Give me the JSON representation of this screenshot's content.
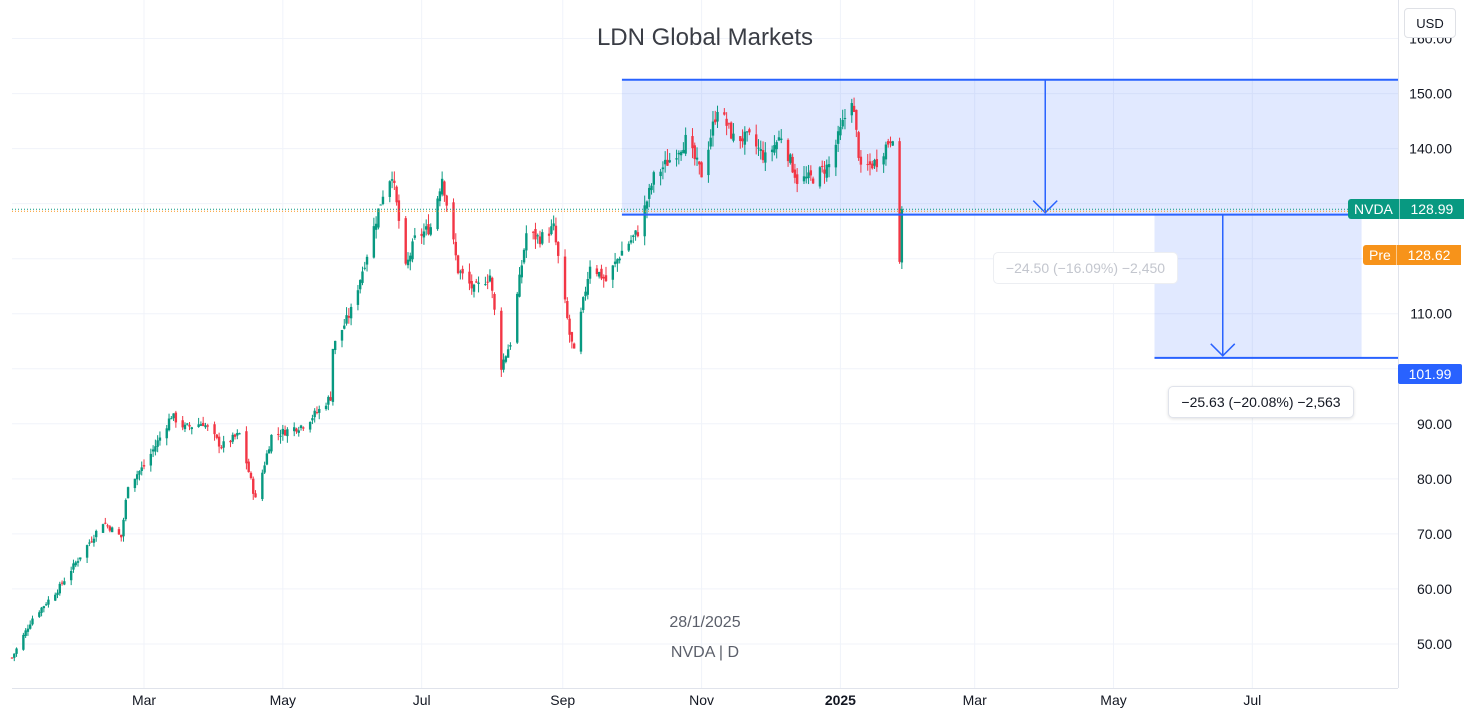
{
  "header": {
    "title": "LDN Global Markets",
    "currency_button": "USD"
  },
  "meta": {
    "date": "28/1/2025",
    "symbol_interval": "NVDA | D"
  },
  "price_tags": {
    "last": {
      "symbol": "NVDA",
      "value": "128.99",
      "color": "#089981"
    },
    "pre": {
      "label": "Pre",
      "value": "128.62",
      "color": "#f7931a"
    },
    "target": {
      "value": "101.99",
      "color": "#2962ff"
    }
  },
  "measurements": {
    "first": {
      "label": "−24.50 (−16.09%) −2,450",
      "top": 152.5,
      "bottom": 128.0,
      "from": "2024-09-27",
      "to": "2026-01-05"
    },
    "second": {
      "label": "−25.63 (−20.08%) −2,563",
      "top": 128.0,
      "bottom": 101.99,
      "from": "2025-05-19",
      "to": "2025-08-18"
    }
  },
  "colors": {
    "up": "#089981",
    "down": "#f23645",
    "zone": "#2962ff",
    "grid": "#f0f3fa"
  },
  "chart_data": {
    "type": "candlestick",
    "title": "LDN Global Markets",
    "symbol": "NVDA",
    "interval": "D",
    "y_axis": {
      "currency": "USD",
      "range": [
        42,
        167
      ],
      "ticks": [
        50,
        60,
        70,
        80,
        90,
        100,
        110,
        120,
        130,
        140,
        150,
        160
      ],
      "tick_labels": [
        "50.00",
        "60.00",
        "70.00",
        "80.00",
        "90.00",
        "100.00",
        "110.00",
        "120.00",
        "130.00",
        "140.00",
        "150.00",
        "160.00"
      ]
    },
    "x_axis": {
      "range": [
        "2024-01-03",
        "2025-09-03"
      ],
      "ticks": [
        {
          "date": "2024-03-01",
          "label": "Mar"
        },
        {
          "date": "2024-05-01",
          "label": "May"
        },
        {
          "date": "2024-07-01",
          "label": "Jul"
        },
        {
          "date": "2024-09-01",
          "label": "Sep"
        },
        {
          "date": "2024-11-01",
          "label": "Nov"
        },
        {
          "date": "2025-01-01",
          "label": "2025"
        },
        {
          "date": "2025-03-01",
          "label": "Mar"
        },
        {
          "date": "2025-05-01",
          "label": "May"
        },
        {
          "date": "2025-07-01",
          "label": "Jul"
        }
      ]
    },
    "last_price": 128.99,
    "pre_market_price": 128.62,
    "close_path": [
      [
        "2024-01-03",
        47.5
      ],
      [
        "2024-01-12",
        54.7
      ],
      [
        "2024-01-23",
        59.8
      ],
      [
        "2024-02-02",
        66.0
      ],
      [
        "2024-02-12",
        72.2
      ],
      [
        "2024-02-20",
        69.4
      ],
      [
        "2024-02-23",
        79.1
      ],
      [
        "2024-03-01",
        82.3
      ],
      [
        "2024-03-08",
        87.5
      ],
      [
        "2024-03-13",
        91.5
      ],
      [
        "2024-03-19",
        89.3
      ],
      [
        "2024-03-27",
        90.2
      ],
      [
        "2024-04-04",
        85.9
      ],
      [
        "2024-04-12",
        88.1
      ],
      [
        "2024-04-19",
        76.2
      ],
      [
        "2024-04-26",
        87.8
      ],
      [
        "2024-05-03",
        88.8
      ],
      [
        "2024-05-10",
        89.8
      ],
      [
        "2024-05-17",
        92.5
      ],
      [
        "2024-05-22",
        94.9
      ],
      [
        "2024-05-23",
        103.8
      ],
      [
        "2024-05-31",
        110.5
      ],
      [
        "2024-06-07",
        120.9
      ],
      [
        "2024-06-14",
        131.9
      ],
      [
        "2024-06-18",
        135.6
      ],
      [
        "2024-06-24",
        118.1
      ],
      [
        "2024-06-28",
        123.5
      ],
      [
        "2024-07-05",
        125.8
      ],
      [
        "2024-07-10",
        134.9
      ],
      [
        "2024-07-17",
        117.9
      ],
      [
        "2024-07-24",
        114.3
      ],
      [
        "2024-07-31",
        117.0
      ],
      [
        "2024-08-05",
        100.5
      ],
      [
        "2024-08-09",
        104.8
      ],
      [
        "2024-08-16",
        124.6
      ],
      [
        "2024-08-22",
        123.7
      ],
      [
        "2024-08-28",
        125.6
      ],
      [
        "2024-09-04",
        106.2
      ],
      [
        "2024-09-06",
        102.8
      ],
      [
        "2024-09-13",
        119.1
      ],
      [
        "2024-09-20",
        116.0
      ],
      [
        "2024-09-27",
        121.4
      ],
      [
        "2024-10-04",
        124.9
      ],
      [
        "2024-10-11",
        134.8
      ],
      [
        "2024-10-18",
        138.0
      ],
      [
        "2024-10-25",
        141.5
      ],
      [
        "2024-11-01",
        135.4
      ],
      [
        "2024-11-08",
        147.6
      ],
      [
        "2024-11-15",
        141.9
      ],
      [
        "2024-11-22",
        141.9
      ],
      [
        "2024-11-29",
        138.3
      ],
      [
        "2024-12-06",
        142.4
      ],
      [
        "2024-12-13",
        134.3
      ],
      [
        "2024-12-20",
        134.7
      ],
      [
        "2024-12-27",
        137.0
      ],
      [
        "2025-01-06",
        149.4
      ],
      [
        "2025-01-10",
        135.9
      ],
      [
        "2025-01-17",
        137.7
      ],
      [
        "2025-01-24",
        142.6
      ],
      [
        "2025-01-27",
        118.4
      ],
      [
        "2025-01-28",
        128.99
      ]
    ],
    "annotations": [
      {
        "type": "range_measure",
        "label": "−24.50 (−16.09%) −2,450",
        "from_price": 152.5,
        "to_price": 128.0
      },
      {
        "type": "range_measure",
        "label": "−25.63 (−20.08%) −2,563",
        "from_price": 128.0,
        "to_price": 101.99
      }
    ]
  }
}
